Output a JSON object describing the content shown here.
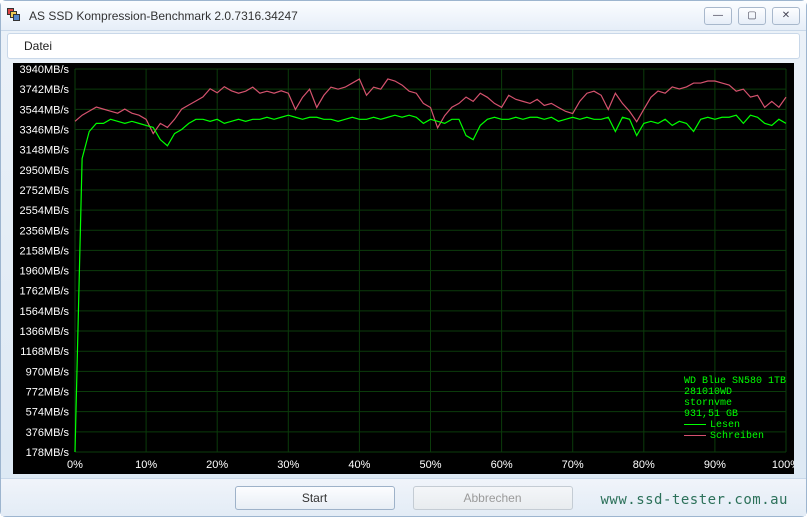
{
  "window": {
    "title": "AS SSD Kompression-Benchmark 2.0.7316.34247",
    "buttons": {
      "min": "—",
      "max": "▢",
      "close": "✕"
    }
  },
  "menu": {
    "datei": "Datei"
  },
  "chart": {
    "background": "#000000",
    "grid_color": "#0b3b0b",
    "axis_label_color": "#ffffff",
    "axis_label_fontsize": 11,
    "y_ticks_labels": [
      "3940MB/s",
      "3742MB/s",
      "3544MB/s",
      "3346MB/s",
      "3148MB/s",
      "2950MB/s",
      "2752MB/s",
      "2554MB/s",
      "2356MB/s",
      "2158MB/s",
      "1960MB/s",
      "1762MB/s",
      "1564MB/s",
      "1366MB/s",
      "1168MB/s",
      "970MB/s",
      "772MB/s",
      "574MB/s",
      "376MB/s",
      "178MB/s"
    ],
    "y_ticks_values": [
      3940,
      3742,
      3544,
      3346,
      3148,
      2950,
      2752,
      2554,
      2356,
      2158,
      1960,
      1762,
      1564,
      1366,
      1168,
      970,
      772,
      574,
      376,
      178
    ],
    "ymin": 178,
    "ymax": 3940,
    "x_ticks_labels": [
      "0%",
      "10%",
      "20%",
      "30%",
      "40%",
      "50%",
      "60%",
      "70%",
      "80%",
      "90%",
      "100%"
    ],
    "x_ticks_values": [
      0,
      10,
      20,
      30,
      40,
      50,
      60,
      70,
      80,
      90,
      100
    ],
    "xmin": 0,
    "xmax": 100,
    "series": {
      "lesen": {
        "label": "Lesen",
        "color": "#00ff00",
        "line_width": 1.2,
        "x": [
          0,
          1,
          2,
          3,
          4,
          5,
          6,
          7,
          8,
          9,
          10,
          11,
          12,
          13,
          14,
          15,
          16,
          17,
          18,
          19,
          20,
          21,
          22,
          23,
          24,
          25,
          26,
          27,
          28,
          29,
          30,
          31,
          32,
          33,
          34,
          35,
          36,
          37,
          38,
          39,
          40,
          41,
          42,
          43,
          44,
          45,
          46,
          47,
          48,
          49,
          50,
          51,
          52,
          53,
          54,
          55,
          56,
          57,
          58,
          59,
          60,
          61,
          62,
          63,
          64,
          65,
          66,
          67,
          68,
          69,
          70,
          71,
          72,
          73,
          74,
          75,
          76,
          77,
          78,
          79,
          80,
          81,
          82,
          83,
          84,
          85,
          86,
          87,
          88,
          89,
          90,
          91,
          92,
          93,
          94,
          95,
          96,
          97,
          98,
          99,
          100
        ],
        "y": [
          178,
          3060,
          3326,
          3406,
          3406,
          3446,
          3426,
          3406,
          3426,
          3406,
          3386,
          3366,
          3246,
          3186,
          3306,
          3346,
          3406,
          3446,
          3446,
          3426,
          3446,
          3406,
          3426,
          3446,
          3426,
          3446,
          3446,
          3466,
          3446,
          3466,
          3486,
          3466,
          3446,
          3466,
          3466,
          3446,
          3446,
          3426,
          3446,
          3466,
          3446,
          3446,
          3466,
          3446,
          3466,
          3486,
          3466,
          3486,
          3466,
          3406,
          3446,
          3426,
          3406,
          3446,
          3446,
          3286,
          3246,
          3386,
          3446,
          3466,
          3446,
          3446,
          3466,
          3446,
          3466,
          3466,
          3446,
          3466,
          3426,
          3446,
          3466,
          3446,
          3466,
          3446,
          3446,
          3466,
          3326,
          3466,
          3446,
          3286,
          3406,
          3426,
          3406,
          3446,
          3386,
          3426,
          3406,
          3326,
          3446,
          3466,
          3446,
          3466,
          3466,
          3486,
          3406,
          3486,
          3466,
          3406,
          3386,
          3446,
          3406
        ]
      },
      "schreiben": {
        "label": "Schreiben",
        "color": "#d4526e",
        "line_width": 1.2,
        "x": [
          0,
          1,
          2,
          3,
          4,
          5,
          6,
          7,
          8,
          9,
          10,
          11,
          12,
          13,
          14,
          15,
          16,
          17,
          18,
          19,
          20,
          21,
          22,
          23,
          24,
          25,
          26,
          27,
          28,
          29,
          30,
          31,
          32,
          33,
          34,
          35,
          36,
          37,
          38,
          39,
          40,
          41,
          42,
          43,
          44,
          45,
          46,
          47,
          48,
          49,
          50,
          51,
          52,
          53,
          54,
          55,
          56,
          57,
          58,
          59,
          60,
          61,
          62,
          63,
          64,
          65,
          66,
          67,
          68,
          69,
          70,
          71,
          72,
          73,
          74,
          75,
          76,
          77,
          78,
          79,
          80,
          81,
          82,
          83,
          84,
          85,
          86,
          87,
          88,
          89,
          90,
          91,
          92,
          93,
          94,
          95,
          96,
          97,
          98,
          99,
          100
        ],
        "y": [
          3426,
          3486,
          3526,
          3566,
          3546,
          3526,
          3506,
          3546,
          3506,
          3486,
          3446,
          3306,
          3406,
          3366,
          3446,
          3546,
          3586,
          3626,
          3666,
          3746,
          3706,
          3766,
          3726,
          3702,
          3722,
          3762,
          3702,
          3722,
          3702,
          3726,
          3702,
          3542,
          3662,
          3742,
          3562,
          3682,
          3762,
          3742,
          3762,
          3802,
          3842,
          3682,
          3762,
          3742,
          3842,
          3822,
          3782,
          3722,
          3702,
          3602,
          3562,
          3362,
          3482,
          3564,
          3602,
          3664,
          3622,
          3702,
          3662,
          3602,
          3564,
          3682,
          3642,
          3622,
          3602,
          3642,
          3582,
          3602,
          3562,
          3524,
          3502,
          3624,
          3702,
          3722,
          3682,
          3542,
          3702,
          3602,
          3524,
          3422,
          3544,
          3662,
          3724,
          3702,
          3764,
          3744,
          3764,
          3802,
          3802,
          3822,
          3822,
          3802,
          3782,
          3722,
          3742,
          3664,
          3682,
          3564,
          3622,
          3564,
          3664
        ]
      }
    },
    "legend": {
      "device_line1": "WD Blue SN580 1TB",
      "device_line2": "281010WD",
      "device_line3": "stornvme",
      "device_line4": "931,51 GB",
      "text_color": "#00ff00"
    }
  },
  "buttons": {
    "start": "Start",
    "abort": "Abbrechen"
  },
  "watermark": "www.ssd-tester.com.au"
}
